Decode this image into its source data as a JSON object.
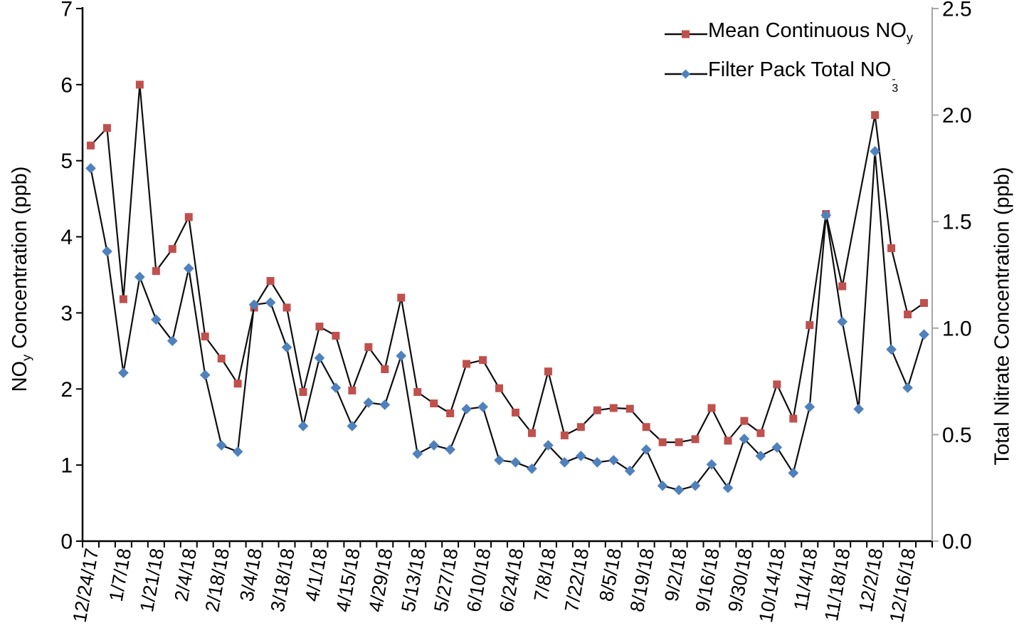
{
  "chart_data": {
    "type": "line",
    "title": "",
    "grid": false,
    "legend_position": "top-right-inside",
    "line_color": "#0d0d0d",
    "x_label_every": 2,
    "x_labels": [
      "12/24/17",
      "1/7/18",
      "1/21/18",
      "2/4/18",
      "2/18/18",
      "3/4/18",
      "3/18/18",
      "4/1/18",
      "4/15/18",
      "4/29/18",
      "5/13/18",
      "5/27/18",
      "6/10/18",
      "6/24/18",
      "7/8/18",
      "7/22/18",
      "8/5/18",
      "8/19/18",
      "9/2/18",
      "9/16/18",
      "9/30/18",
      "10/14/18",
      "11/4/18",
      "11/18/18",
      "12/2/18",
      "12/16/18"
    ],
    "left_axis": {
      "title": "NOy Concentration (ppb)",
      "min": 0,
      "max": 7,
      "step": 1,
      "tick_labels": [
        "0",
        "1",
        "2",
        "3",
        "4",
        "5",
        "6",
        "7"
      ],
      "color": "#000000"
    },
    "right_axis": {
      "title": "Total Nitrate Concentration (ppb)",
      "min": 0,
      "max": 2.5,
      "step": 0.5,
      "tick_labels": [
        "0.0",
        "0.5",
        "1.0",
        "1.5",
        "2.0",
        "2.5"
      ],
      "color": "#a6a6a6"
    },
    "series": [
      {
        "name": "Mean Continuous NOy",
        "axis": "left",
        "marker": "square",
        "color": "#C0504D",
        "values": [
          5.2,
          5.43,
          3.18,
          6.0,
          3.55,
          3.84,
          4.26,
          2.69,
          2.4,
          2.07,
          3.07,
          3.42,
          3.07,
          1.96,
          2.82,
          2.7,
          1.98,
          2.55,
          2.26,
          3.2,
          1.96,
          1.81,
          1.68,
          2.33,
          2.38,
          2.01,
          1.69,
          1.42,
          2.23,
          1.39,
          1.5,
          1.72,
          1.75,
          1.74,
          1.5,
          1.3,
          1.3,
          1.34,
          1.75,
          1.32,
          1.58,
          1.42,
          2.06,
          1.61,
          2.84,
          4.3,
          3.35,
          null,
          5.6,
          3.85,
          2.98,
          3.13
        ]
      },
      {
        "name": "Filter Pack Total NO3-",
        "axis": "right",
        "marker": "diamond",
        "color": "#4F81BD",
        "values": [
          1.75,
          1.36,
          0.79,
          1.24,
          1.04,
          0.94,
          1.28,
          0.78,
          0.45,
          0.42,
          1.11,
          1.12,
          0.91,
          0.54,
          0.86,
          0.72,
          0.54,
          0.65,
          0.64,
          0.87,
          0.41,
          0.45,
          0.43,
          0.62,
          0.63,
          0.38,
          0.37,
          0.34,
          0.45,
          0.37,
          0.4,
          0.37,
          0.38,
          0.33,
          0.43,
          0.26,
          0.24,
          0.26,
          0.36,
          0.25,
          0.48,
          0.4,
          0.44,
          0.32,
          0.63,
          1.53,
          1.03,
          0.62,
          1.83,
          0.9,
          0.72,
          0.97
        ]
      }
    ]
  },
  "axis_titles": {
    "left_pre": "NO",
    "left_sub": "y",
    "left_post": " Concentration (ppb)",
    "right": "Total Nitrate Concentration (ppb)"
  },
  "legend": {
    "items": [
      {
        "pre": "Mean Continuous NO",
        "sub": "y",
        "sup": ""
      },
      {
        "pre": "Filter Pack Total NO",
        "sub": "3",
        "sup": "-"
      }
    ]
  }
}
